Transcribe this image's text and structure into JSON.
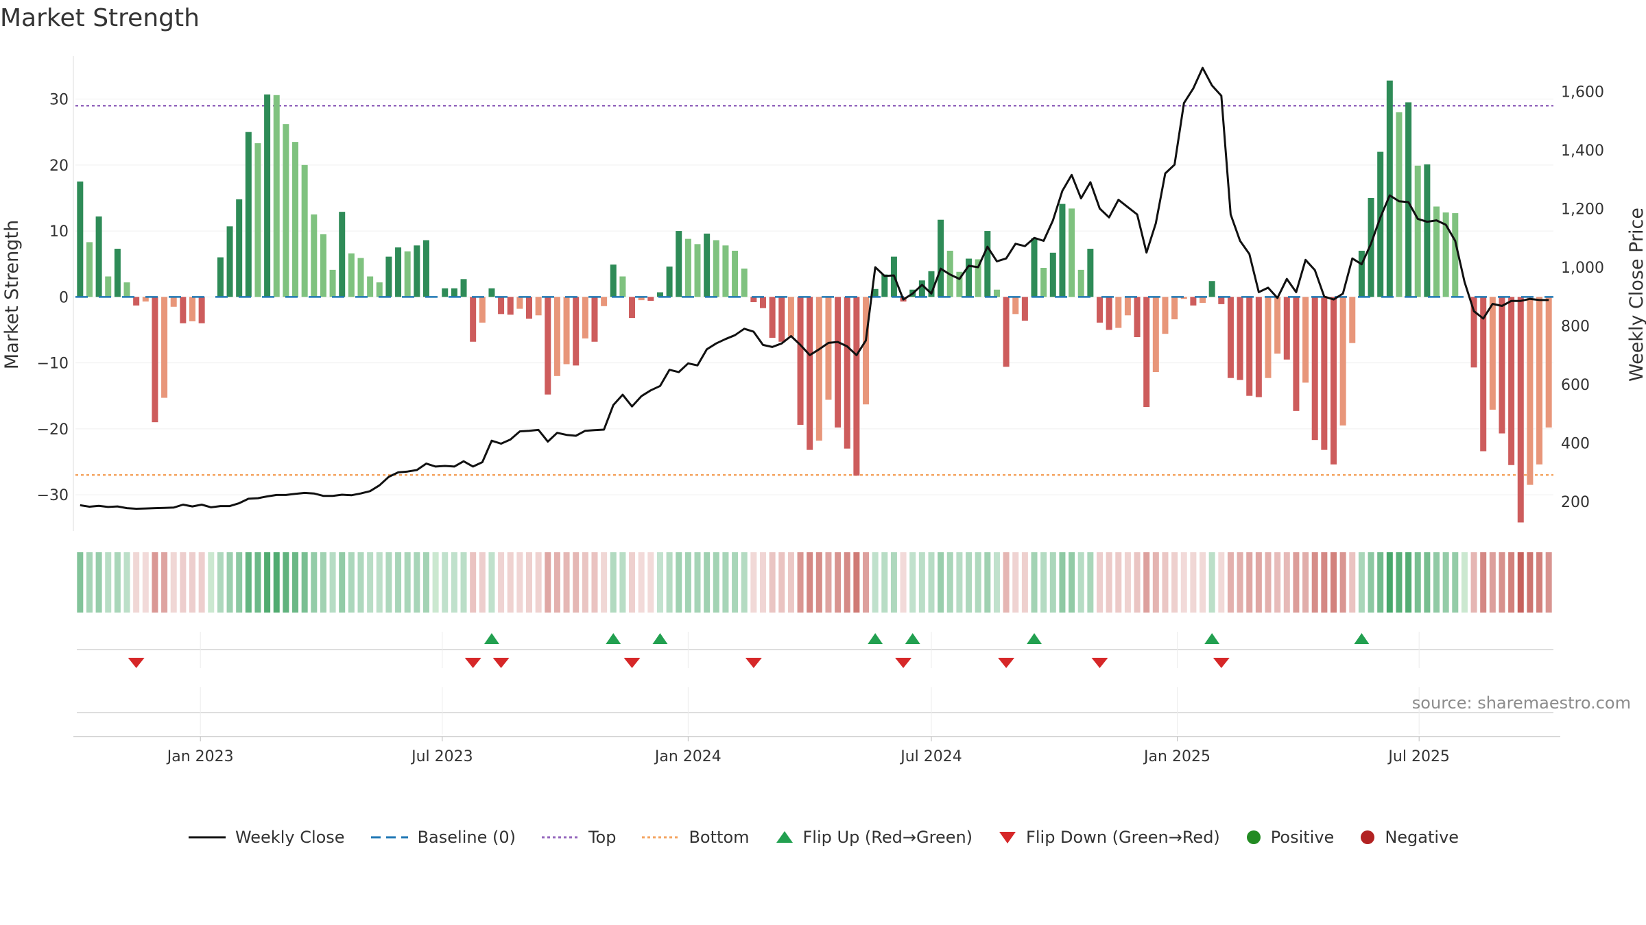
{
  "title": "Market Strength",
  "source": "source: sharemaestro.com",
  "colors": {
    "pos_dark": "#2e8b57",
    "pos_light": "#7fc27f",
    "neg_dark": "#cd5c5c",
    "neg_light": "#e8967a",
    "close_line": "#111111",
    "baseline": "#1f77b4",
    "top": "#9467bd",
    "bottom": "#f4a460",
    "flip_up": "#22a050",
    "flip_down": "#d62728",
    "positive_dot": "#228b22",
    "negative_dot": "#b22222"
  },
  "legend": [
    {
      "key": "close",
      "label": "Weekly Close"
    },
    {
      "key": "baseline",
      "label": "Baseline (0)"
    },
    {
      "key": "top",
      "label": "Top"
    },
    {
      "key": "bottom",
      "label": "Bottom"
    },
    {
      "key": "flip_up",
      "label": "Flip Up (Red→Green)"
    },
    {
      "key": "flip_down",
      "label": "Flip Down (Green→Red)"
    },
    {
      "key": "positive",
      "label": "Positive"
    },
    {
      "key": "negative",
      "label": "Negative"
    }
  ],
  "chart_data": {
    "type": "bar",
    "x_type": "weekly-dates",
    "start_date": "2022-10-03",
    "ylabel": "Market Strength",
    "y2label": "Weekly Close Price",
    "ylim": [
      -35.5,
      36.5
    ],
    "y2lim": [
      100,
      1720
    ],
    "yticks": [
      "30",
      "20",
      "10",
      "0",
      "−10",
      "−20",
      "−30"
    ],
    "y2ticks": [
      "1,600",
      "1,400",
      "1,200",
      "1,000",
      "800",
      "600",
      "400",
      "200"
    ],
    "xticks": [
      "Jan 2023",
      "Jul 2023",
      "Jan 2024",
      "Jul 2024",
      "Jan 2025",
      "Jul 2025"
    ],
    "top_level": 29,
    "bottom_level": -27,
    "strength": [
      17.5,
      8.3,
      12.2,
      3.1,
      7.3,
      2.2,
      -1.3,
      -0.7,
      -19,
      -15.3,
      -1.5,
      -4,
      -3.7,
      -4,
      0,
      6,
      10.7,
      14.8,
      25,
      23.3,
      30.7,
      30.6,
      26.2,
      23.5,
      20,
      12.5,
      9.5,
      4.1,
      12.9,
      6.6,
      5.9,
      3.1,
      2.2,
      6.1,
      7.5,
      6.9,
      7.8,
      8.6,
      0,
      1.3,
      1.3,
      2.7,
      -6.8,
      -3.9,
      1.3,
      -2.6,
      -2.7,
      -1.8,
      -3.3,
      -2.8,
      -14.8,
      -12,
      -10.2,
      -10.4,
      -6.3,
      -6.8,
      -1.4,
      4.9,
      3.1,
      -3.2,
      -0.5,
      -0.6,
      0.7,
      4.6,
      10,
      8.8,
      8,
      9.6,
      8.6,
      7.8,
      7,
      4.3,
      -0.8,
      -1.7,
      -6.2,
      -6.8,
      -6,
      -19.4,
      -23.2,
      -21.8,
      -15.6,
      -19.8,
      -23,
      -27.1,
      -16.3,
      1.2,
      3.4,
      6.1,
      -0.7,
      1.1,
      2.5,
      3.9,
      11.7,
      7,
      3.8,
      5.8,
      5.7,
      10,
      1.1,
      -10.6,
      -2.6,
      -3.6,
      8.9,
      4.4,
      6.7,
      14.1,
      13.4,
      4.1,
      7.3,
      -3.9,
      -5,
      -4.7,
      -2.8,
      -6.1,
      -16.7,
      -11.4,
      -5.6,
      -3.4,
      -0.3,
      -1.3,
      -0.9,
      2.4,
      -1.1,
      -12.3,
      -12.6,
      -15,
      -15.2,
      -12.3,
      -8.6,
      -9.5,
      -17.3,
      -13,
      -21.7,
      -23.2,
      -25.4,
      -19.5,
      -7,
      7,
      15,
      22,
      32.8,
      28,
      29.5,
      19.9,
      20.1,
      13.7,
      12.8,
      12.7,
      0,
      -10.7,
      -23.4,
      -17.1,
      -20.7,
      -25.5,
      -34.2,
      -28.5,
      -25.4,
      -19.8
    ],
    "close": [
      188,
      183,
      186,
      182,
      184,
      178,
      176,
      177,
      178,
      179,
      180,
      190,
      184,
      190,
      181,
      185,
      185,
      195,
      210,
      212,
      218,
      223,
      223,
      227,
      230,
      228,
      220,
      220,
      224,
      222,
      228,
      236,
      256,
      285,
      300,
      303,
      308,
      330,
      320,
      322,
      320,
      338,
      320,
      335,
      408,
      398,
      412,
      440,
      442,
      445,
      405,
      435,
      428,
      425,
      442,
      444,
      446,
      530,
      565,
      525,
      560,
      580,
      595,
      650,
      642,
      672,
      665,
      720,
      740,
      755,
      768,
      790,
      780,
      735,
      728,
      740,
      765,
      735,
      700,
      720,
      742,
      745,
      730,
      700,
      750,
      1000,
      970,
      972,
      890,
      910,
      940,
      910,
      995,
      975,
      960,
      1005,
      1000,
      1070,
      1020,
      1030,
      1080,
      1072,
      1100,
      1090,
      1160,
      1260,
      1315,
      1235,
      1290,
      1200,
      1170,
      1230,
      1205,
      1180,
      1050,
      1150,
      1320,
      1350,
      1560,
      1610,
      1680,
      1620,
      1585,
      1180,
      1090,
      1045,
      915,
      930,
      895,
      960,
      915,
      1025,
      990,
      900,
      890,
      910,
      1030,
      1010,
      1080,
      1170,
      1245,
      1225,
      1222,
      1165,
      1155,
      1160,
      1145,
      1090,
      950,
      850,
      825,
      875,
      868,
      885,
      885,
      892,
      888,
      888
    ]
  }
}
